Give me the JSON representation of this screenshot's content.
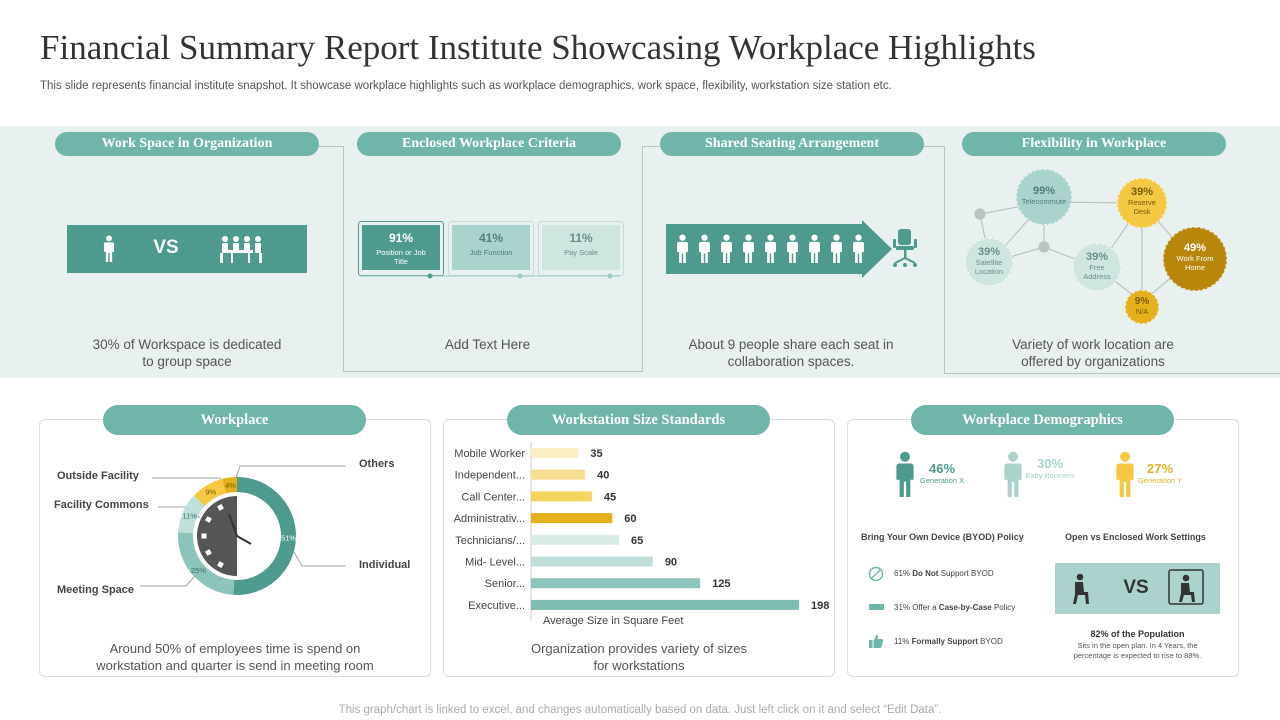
{
  "title": "Financial Summary Report Institute Showcasing Workplace Highlights",
  "subtitle": "This slide represents financial institute snapshot. It showcase workplace highlights such as workplace demographics, work space, flexibility, workstation size station etc.",
  "colors": {
    "teal_dark": "#4f9a8f",
    "teal": "#6fb5aa",
    "teal_light": "#a9d3cc",
    "yellow": "#f4c843",
    "yellow_dark": "#d9a91a",
    "gold": "#b8860b",
    "band": "#e8f1ef"
  },
  "top": {
    "workspace": {
      "header": "Work Space in Organization",
      "vs": "VS",
      "caption_1": "30% of Workspace is dedicated",
      "caption_2": "to group space",
      "icon_left": "person-icon",
      "icon_right": "group-meeting-icon"
    },
    "criteria": {
      "header": "Enclosed Workplace Criteria",
      "items": [
        {
          "value": "91%",
          "label_1": "Position or Job",
          "label_2": "Title"
        },
        {
          "value": "41%",
          "label_1": "Job Function",
          "label_2": ""
        },
        {
          "value": "11%",
          "label_1": "Pay Scale",
          "label_2": ""
        }
      ],
      "caption": "Add Text Here"
    },
    "shared": {
      "header": "Shared Seating Arrangement",
      "people_icon": "person-icon",
      "chair_icon": "office-chair-icon",
      "caption_1": "About 9 people share each seat in",
      "caption_2": "collaboration spaces."
    },
    "flex": {
      "header": "Flexibility in Workplace",
      "bubbles": [
        {
          "value": "99%",
          "label_1": "Telecommute",
          "label_2": ""
        },
        {
          "value": "39%",
          "label_1": "Reserve",
          "label_2": "Desk"
        },
        {
          "value": "39%",
          "label_1": "Satellite",
          "label_2": "Location"
        },
        {
          "value": "39%",
          "label_1": "Free",
          "label_2": "Address"
        },
        {
          "value": "49%",
          "label_1": "Work From",
          "label_2": "Home"
        },
        {
          "value": "9%",
          "label_1": "N/A",
          "label_2": ""
        }
      ],
      "caption_1": "Variety of work location are",
      "caption_2": "offered  by organizations"
    }
  },
  "workplace": {
    "header": "Workplace",
    "labels": {
      "outside": "Outside Facility",
      "commons": "Facility Commons",
      "meeting": "Meeting Space",
      "others": "Others",
      "individual": "Individual"
    },
    "slices": [
      {
        "name": "Individual",
        "value": 51,
        "label": "51%"
      },
      {
        "name": "Meeting Space",
        "value": 25,
        "label": "25%"
      },
      {
        "name": "Facility Commons",
        "value": 11,
        "label": "11%"
      },
      {
        "name": "Outside Facility",
        "value": 9,
        "label": "9%"
      },
      {
        "name": "Others",
        "value": 4,
        "label": "4%"
      }
    ],
    "caption_1": "Around 50% of employees time is spend on",
    "caption_2": "workstation and quarter is send in meeting room"
  },
  "chart_data": {
    "type": "bar",
    "orientation": "horizontal",
    "title": "Workstation Size Standards",
    "xlabel": "Average Size in Square Feet",
    "categories": [
      "Mobile Worker",
      "Independent...",
      "Call Center...",
      "Administrativ...",
      "Technicians/...",
      "Mid- Level...",
      "Senior...",
      "Executive..."
    ],
    "values": [
      35,
      40,
      45,
      60,
      65,
      90,
      125,
      198
    ],
    "value_labels": [
      "35",
      "40",
      "45",
      "60",
      "65",
      "90",
      "125",
      "198"
    ],
    "xlim": [
      0,
      198
    ]
  },
  "workstation": {
    "header": "Workstation Size Standards",
    "caption_1": "Organization provides variety of sizes",
    "caption_2": "for workstations"
  },
  "demographics": {
    "header": "Workplace Demographics",
    "generations": [
      {
        "value": "46%",
        "label": "Generation  X"
      },
      {
        "value": "30%",
        "label": "Baby Boomers"
      },
      {
        "value": "27%",
        "label": "Generation  Y"
      }
    ],
    "byod": {
      "title": "Bring Your Own  Device (BYOD) Policy",
      "rows": [
        {
          "pct": "61%",
          "bold": "Do Not",
          "rest": "Support  BYOD"
        },
        {
          "pct": "31%",
          "pre": "Offer a",
          "bold": "Case-by-Case",
          "rest": "Policy"
        },
        {
          "pct": "11%",
          "bold": "Formally  Support",
          "rest": "BYOD"
        }
      ]
    },
    "open": {
      "title": "Open vs Enclosed Work Settings",
      "vs": "VS",
      "stat": "82% of the Population",
      "desc_1": "Sits in the open plan. In 4 Years, the",
      "desc_2": "percentage  is expected  to rise to 88%."
    }
  },
  "footer": "This graph/chart is linked to excel,  and changes automatically based on data. Just left click on it and select “Edit Data”."
}
